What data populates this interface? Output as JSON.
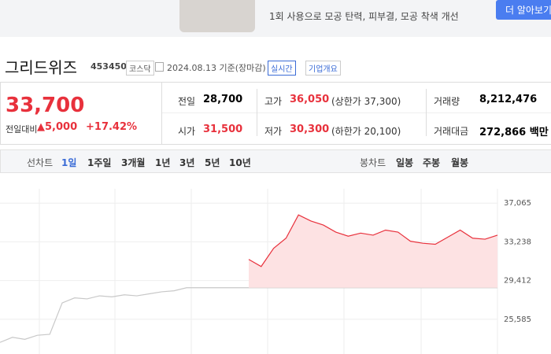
{
  "ad": {
    "text": "1회 사용으로 모공 탄력, 피부결, 모공 착색 개선",
    "button": "더 알아보기"
  },
  "header": {
    "name": "그리드위즈",
    "code": "453450",
    "market": "코스닥",
    "date": "2024.08.13 기준(장마감)",
    "realtime": "실시간",
    "overview": "기업개요"
  },
  "price": {
    "current": "33,700",
    "change_label": "전일대비",
    "change": "▲5,000",
    "change_pct": "+17.42%"
  },
  "summary": {
    "rows": [
      [
        {
          "label": "전일",
          "value": "28,700"
        },
        {
          "label": "고가",
          "value": "36,050",
          "note": "(상한가 37,300)"
        },
        {
          "label": "거래량",
          "value": "8,212,476"
        }
      ],
      [
        {
          "label": "시가",
          "value": "31,500"
        },
        {
          "label": "저가",
          "value": "30,300",
          "note": "(하한가 20,100)"
        },
        {
          "label": "거래대금",
          "value": "272,866 백만"
        }
      ]
    ]
  },
  "tabs": {
    "line_label": "선차트",
    "line": [
      "1일",
      "1주일",
      "3개월",
      "1년",
      "3년",
      "5년",
      "10년"
    ],
    "candle_label": "봉차트",
    "candle": [
      "일봉",
      "주봉",
      "월봉"
    ]
  },
  "chart_data": {
    "type": "line",
    "ylim": [
      22150,
      39570
    ],
    "yticks": [
      {
        "value": 37065,
        "label": "37,065"
      },
      {
        "value": 33238,
        "label": "33,238"
      },
      {
        "value": 29412,
        "label": "29,412"
      },
      {
        "value": 25585,
        "label": "25,585"
      }
    ],
    "grid": true,
    "series": [
      {
        "color": "#c8c8c8",
        "values": [
          23300,
          23800,
          23600,
          24000,
          24100,
          27200,
          27700,
          27600,
          27900,
          27800,
          28000,
          27900,
          28100,
          28300,
          28400,
          28700,
          28700,
          28700,
          28700,
          28700,
          28700,
          28700,
          28700,
          28700,
          28700,
          28700,
          28700,
          28700,
          28700,
          28700,
          28700,
          28700,
          28700,
          28700,
          28700,
          28700,
          28700,
          28700,
          28700,
          28700,
          28700
        ]
      },
      {
        "color": "#e8313c",
        "fill": "#fde2e3",
        "values": [
          null,
          null,
          null,
          null,
          null,
          null,
          null,
          null,
          null,
          null,
          null,
          null,
          null,
          null,
          null,
          null,
          null,
          null,
          null,
          null,
          31500,
          30800,
          32600,
          33600,
          35900,
          35300,
          34900,
          34200,
          33800,
          34100,
          33900,
          34400,
          34200,
          33300,
          33100,
          33000,
          33700,
          34400,
          33600,
          33500,
          33900
        ]
      }
    ]
  }
}
